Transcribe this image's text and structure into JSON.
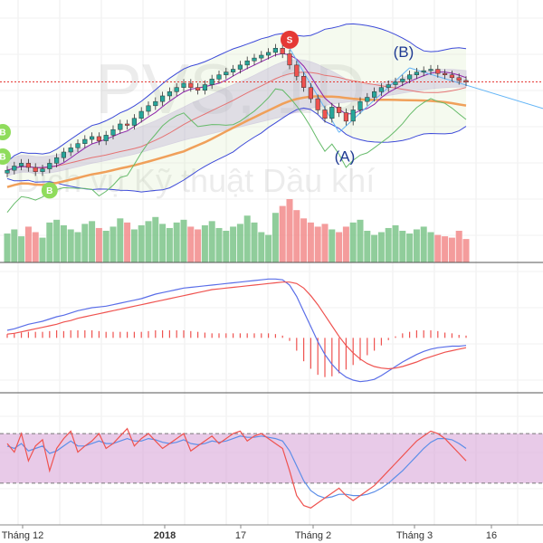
{
  "watermark": {
    "ticker": "PVS, 1D",
    "company": "Dịch vụ Kỹ thuật Dầu khí"
  },
  "wave_labels": [
    "(A)",
    "(B)"
  ],
  "signals": [
    {
      "type": "buy",
      "label": "B",
      "date": "2017-11-24"
    },
    {
      "type": "buy",
      "label": "B",
      "date": "2017-11-28"
    },
    {
      "type": "buy",
      "label": "B",
      "date": "2017-12-12"
    },
    {
      "type": "sell",
      "label": "S",
      "date": "2018-01-30"
    }
  ],
  "colors": {
    "up": "#26a69a",
    "down": "#ef5350",
    "volume_up": "#7cc48a",
    "volume_down": "#f28b8b",
    "bollinger": "#3d4ad9",
    "kumo": "#b39ddb",
    "kijun": "#f0a05a",
    "macd": "#5a6ee8",
    "signal": "#ef5350",
    "rsi_fill": "#d9a7d9"
  },
  "x_axis": {
    "labels": [
      "Tháng 12",
      "2018",
      "17",
      "Tháng 2",
      "Tháng 3",
      "16"
    ],
    "bold": [
      false,
      true,
      false,
      false,
      false,
      false
    ]
  },
  "chart_data": [
    {
      "type": "line",
      "panel": "price",
      "title": "PVS, 1D",
      "x_type": "date",
      "candles": {
        "dates": [
          "2017-12-04",
          "2017-12-05",
          "2017-12-06",
          "2017-12-07",
          "2017-12-08",
          "2017-12-11",
          "2017-12-12",
          "2017-12-13",
          "2017-12-14",
          "2017-12-15",
          "2017-12-18",
          "2017-12-19",
          "2017-12-20",
          "2017-12-21",
          "2017-12-22",
          "2017-12-25",
          "2017-12-26",
          "2017-12-27",
          "2017-12-28",
          "2017-12-29",
          "2018-01-02",
          "2018-01-03",
          "2018-01-04",
          "2018-01-05",
          "2018-01-08",
          "2018-01-09",
          "2018-01-10",
          "2018-01-11",
          "2018-01-12",
          "2018-01-15",
          "2018-01-16",
          "2018-01-17",
          "2018-01-18",
          "2018-01-19",
          "2018-01-22",
          "2018-01-23",
          "2018-01-24",
          "2018-01-25",
          "2018-01-26",
          "2018-01-29",
          "2018-01-30",
          "2018-01-31",
          "2018-02-01",
          "2018-02-02",
          "2018-02-05",
          "2018-02-06",
          "2018-02-07",
          "2018-02-08",
          "2018-02-09",
          "2018-02-12",
          "2018-02-13",
          "2018-02-14",
          "2018-02-21",
          "2018-02-22",
          "2018-02-23",
          "2018-02-26",
          "2018-02-27",
          "2018-02-28",
          "2018-03-01",
          "2018-03-02",
          "2018-03-05",
          "2018-03-06",
          "2018-03-07",
          "2018-03-08",
          "2018-03-09",
          "2018-03-12"
        ],
        "open": [
          18.9,
          19.1,
          19.4,
          19.6,
          19.3,
          19.0,
          19.2,
          19.6,
          20.0,
          20.4,
          20.7,
          21.0,
          21.3,
          21.5,
          21.2,
          21.6,
          22.0,
          22.4,
          22.3,
          22.8,
          23.3,
          23.7,
          24.0,
          24.4,
          24.7,
          25.0,
          25.3,
          25.0,
          24.8,
          25.2,
          25.6,
          25.9,
          26.1,
          26.3,
          26.6,
          26.9,
          27.1,
          27.3,
          27.5,
          27.8,
          27.4,
          26.6,
          25.8,
          25.0,
          24.2,
          23.4,
          22.8,
          23.6,
          23.2,
          22.6,
          23.4,
          24.0,
          24.3,
          24.7,
          25.0,
          25.2,
          25.4,
          25.6,
          25.9,
          26.1,
          26.2,
          26.3,
          26.0,
          25.9,
          25.7,
          25.5
        ],
        "close": [
          19.1,
          19.4,
          19.6,
          19.3,
          19.0,
          19.2,
          19.6,
          20.0,
          20.4,
          20.7,
          21.0,
          21.3,
          21.5,
          21.2,
          21.6,
          22.0,
          22.4,
          22.3,
          22.8,
          23.3,
          23.7,
          24.0,
          24.4,
          24.7,
          25.0,
          25.3,
          25.0,
          24.8,
          25.2,
          25.6,
          25.9,
          26.1,
          26.3,
          26.6,
          26.9,
          27.1,
          27.3,
          27.5,
          27.8,
          27.4,
          26.6,
          25.8,
          25.0,
          24.2,
          23.4,
          22.8,
          23.6,
          23.2,
          22.6,
          23.4,
          24.0,
          24.3,
          24.7,
          25.0,
          25.2,
          25.4,
          25.6,
          25.9,
          26.1,
          26.2,
          26.3,
          26.0,
          25.9,
          25.7,
          25.5,
          25.4
        ],
        "volume": [
          2.1,
          2.4,
          1.9,
          2.6,
          2.2,
          1.8,
          2.9,
          3.1,
          2.7,
          2.4,
          2.2,
          2.8,
          3.0,
          2.5,
          2.3,
          2.6,
          3.2,
          2.9,
          2.4,
          2.7,
          3.0,
          3.3,
          2.8,
          2.5,
          2.9,
          3.1,
          2.6,
          2.4,
          2.7,
          3.0,
          2.5,
          2.3,
          2.6,
          2.8,
          3.4,
          2.9,
          2.2,
          2.0,
          3.6,
          4.1,
          4.6,
          3.8,
          3.2,
          2.9,
          2.6,
          2.8,
          2.4,
          2.2,
          2.6,
          2.9,
          3.1,
          2.3,
          2.0,
          2.2,
          2.5,
          2.7,
          2.3,
          2.1,
          2.4,
          2.6,
          2.2,
          2.0,
          1.9,
          1.8,
          2.3,
          1.7
        ]
      },
      "ylabel": ""
    },
    {
      "type": "line",
      "panel": "macd",
      "series": [
        {
          "values": [
            0.1,
            0.12,
            0.15,
            0.18,
            0.2,
            0.22,
            0.25,
            0.28,
            0.3,
            0.33,
            0.36,
            0.38,
            0.4,
            0.41,
            0.42,
            0.44,
            0.46,
            0.48,
            0.5,
            0.52,
            0.55,
            0.58,
            0.6,
            0.62,
            0.64,
            0.66,
            0.67,
            0.68,
            0.69,
            0.7,
            0.71,
            0.72,
            0.73,
            0.74,
            0.75,
            0.76,
            0.77,
            0.78,
            0.78,
            0.77,
            0.7,
            0.55,
            0.35,
            0.15,
            -0.05,
            -0.22,
            -0.35,
            -0.45,
            -0.52,
            -0.56,
            -0.58,
            -0.57,
            -0.55,
            -0.5,
            -0.44,
            -0.38,
            -0.32,
            -0.27,
            -0.22,
            -0.18,
            -0.15,
            -0.13,
            -0.12,
            -0.11,
            -0.11,
            -0.1
          ]
        },
        {
          "values": [
            0.05,
            0.06,
            0.08,
            0.1,
            0.12,
            0.14,
            0.16,
            0.18,
            0.21,
            0.23,
            0.26,
            0.28,
            0.3,
            0.32,
            0.34,
            0.36,
            0.38,
            0.4,
            0.42,
            0.44,
            0.46,
            0.48,
            0.5,
            0.52,
            0.54,
            0.56,
            0.58,
            0.6,
            0.62,
            0.64,
            0.65,
            0.66,
            0.67,
            0.68,
            0.69,
            0.7,
            0.71,
            0.72,
            0.73,
            0.74,
            0.74,
            0.72,
            0.66,
            0.56,
            0.44,
            0.3,
            0.16,
            0.02,
            -0.1,
            -0.2,
            -0.28,
            -0.34,
            -0.38,
            -0.4,
            -0.41,
            -0.4,
            -0.38,
            -0.35,
            -0.32,
            -0.28,
            -0.25,
            -0.22,
            -0.19,
            -0.17,
            -0.15,
            -0.13
          ]
        }
      ],
      "histogram": [
        0.05,
        0.06,
        0.07,
        0.08,
        0.08,
        0.08,
        0.09,
        0.1,
        0.09,
        0.1,
        0.1,
        0.1,
        0.1,
        0.09,
        0.08,
        0.08,
        0.08,
        0.08,
        0.08,
        0.08,
        0.09,
        0.1,
        0.1,
        0.1,
        0.1,
        0.1,
        0.09,
        0.08,
        0.07,
        0.06,
        0.06,
        0.06,
        0.06,
        0.06,
        0.06,
        0.06,
        0.06,
        0.06,
        0.05,
        0.03,
        -0.04,
        -0.17,
        -0.31,
        -0.41,
        -0.49,
        -0.52,
        -0.51,
        -0.47,
        -0.42,
        -0.36,
        -0.3,
        -0.23,
        -0.17,
        -0.1,
        -0.03,
        0.02,
        0.06,
        0.08,
        0.1,
        0.1,
        0.1,
        0.09,
        0.07,
        0.06,
        0.04,
        0.03
      ]
    },
    {
      "type": "line",
      "panel": "rsi",
      "series": [
        {
          "values": [
            62,
            55,
            70,
            48,
            60,
            65,
            40,
            58,
            66,
            72,
            55,
            60,
            64,
            70,
            58,
            62,
            68,
            74,
            60,
            66,
            70,
            64,
            58,
            62,
            66,
            70,
            56,
            60,
            64,
            68,
            62,
            66,
            70,
            72,
            64,
            68,
            70,
            66,
            62,
            58,
            40,
            20,
            12,
            10,
            14,
            18,
            22,
            26,
            20,
            16,
            20,
            24,
            28,
            34,
            40,
            46,
            52,
            58,
            64,
            68,
            72,
            70,
            66,
            60,
            54,
            48
          ]
        },
        {
          "values": [
            60,
            58,
            62,
            56,
            58,
            60,
            54,
            56,
            60,
            64,
            60,
            60,
            62,
            64,
            62,
            62,
            64,
            66,
            64,
            64,
            66,
            65,
            63,
            62,
            63,
            65,
            62,
            61,
            62,
            64,
            63,
            64,
            66,
            68,
            67,
            67,
            68,
            67,
            66,
            64,
            56,
            44,
            32,
            24,
            20,
            18,
            19,
            21,
            21,
            20,
            20,
            21,
            23,
            26,
            30,
            35,
            40,
            46,
            52,
            58,
            63,
            66,
            66,
            65,
            62,
            58
          ]
        }
      ],
      "ylim": [
        0,
        100
      ]
    }
  ]
}
